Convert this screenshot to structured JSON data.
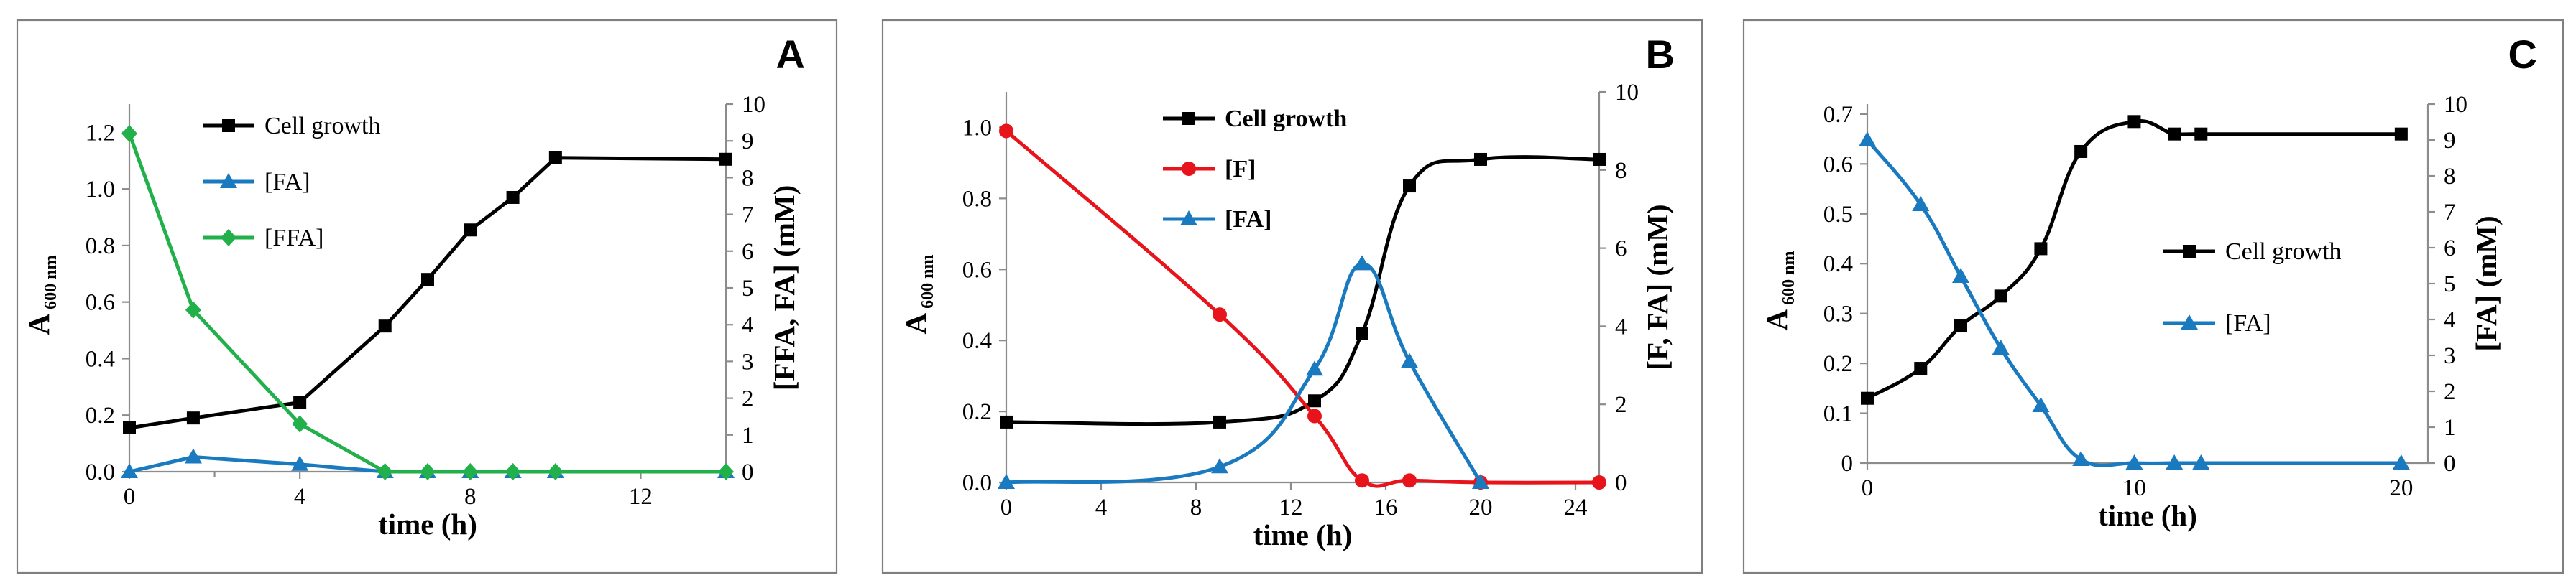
{
  "colors": {
    "black": "#000000",
    "blue": "#1a7abf",
    "green": "#22b04a",
    "red": "#e8141c"
  },
  "chart_data": [
    {
      "type": "line",
      "panel": "A",
      "xlabel": "time (h)",
      "ylabel_main": "A",
      "ylabel_sub": "600 nm",
      "y2label": "[FFA, FA] (mM)",
      "xlim": [
        0,
        14
      ],
      "ylim": [
        0,
        1.3
      ],
      "y2lim": [
        0,
        10
      ],
      "xticks": [
        0,
        4,
        8,
        12
      ],
      "xminor": [
        2,
        6,
        10,
        14
      ],
      "yticks": [
        0,
        0.2,
        0.4,
        0.6,
        0.8,
        1.0,
        1.2
      ],
      "ytick_labels": [
        "0.0",
        "0.2",
        "0.4",
        "0.6",
        "0.8",
        "1.0",
        "1.2"
      ],
      "y2ticks": [
        0,
        1,
        2,
        3,
        4,
        5,
        6,
        7,
        8,
        9,
        10
      ],
      "grid": false,
      "legend_bold": false,
      "series": [
        {
          "name": "Cell growth",
          "axis": "left",
          "color": "#000000",
          "marker": "square",
          "curve": "linear",
          "x": [
            0,
            1.5,
            4,
            6,
            7,
            8,
            9,
            10,
            14
          ],
          "y": [
            0.155,
            0.19,
            0.245,
            0.515,
            0.68,
            0.855,
            0.97,
            1.11,
            1.105
          ]
        },
        {
          "name": "[FA]",
          "axis": "right",
          "color": "#1a7abf",
          "marker": "triangle",
          "curve": "linear",
          "x": [
            0,
            1.5,
            4,
            6,
            7,
            8,
            9,
            10,
            14
          ],
          "y": [
            0,
            0.4,
            0.2,
            0,
            0,
            0,
            0,
            0,
            0
          ]
        },
        {
          "name": "[FFA]",
          "axis": "right",
          "color": "#22b04a",
          "marker": "diamond",
          "curve": "linear",
          "x": [
            0,
            1.5,
            4,
            6,
            7,
            8,
            9,
            10,
            14
          ],
          "y": [
            9.2,
            4.4,
            1.3,
            0,
            0,
            0,
            0,
            0,
            0
          ]
        }
      ]
    },
    {
      "type": "line",
      "panel": "B",
      "xlabel": "time (h)",
      "ylabel_main": "A",
      "ylabel_sub": "600 nm",
      "y2label": "[F, FA] (mM)",
      "xlim": [
        0,
        25
      ],
      "ylim": [
        0,
        1.1
      ],
      "y2lim": [
        0,
        10
      ],
      "xticks": [
        0,
        4,
        8,
        12,
        16,
        20,
        24
      ],
      "xminor": [],
      "yticks": [
        0,
        0.2,
        0.4,
        0.6,
        0.8,
        1.0
      ],
      "ytick_labels": [
        "0.0",
        "0.2",
        "0.4",
        "0.6",
        "0.8",
        "1.0"
      ],
      "y2ticks": [
        0,
        2,
        4,
        6,
        8,
        10
      ],
      "grid": false,
      "legend_bold": true,
      "series": [
        {
          "name": "Cell growth",
          "axis": "left",
          "color": "#000000",
          "marker": "square",
          "curve": "smooth",
          "x": [
            0,
            9,
            13,
            15,
            17,
            20,
            25
          ],
          "y": [
            0.17,
            0.17,
            0.23,
            0.42,
            0.835,
            0.91,
            0.91
          ]
        },
        {
          "name": "[F]",
          "axis": "right",
          "color": "#e8141c",
          "marker": "circle",
          "curve": "smooth",
          "x": [
            0,
            9,
            13,
            15,
            17,
            20,
            25
          ],
          "y": [
            9.0,
            4.3,
            1.7,
            0.05,
            0.05,
            0,
            0
          ]
        },
        {
          "name": "[FA]",
          "axis": "right",
          "color": "#1a7abf",
          "marker": "triangle",
          "curve": "smooth",
          "x": [
            0,
            9,
            13,
            15,
            17,
            20
          ],
          "y": [
            0,
            0.4,
            2.9,
            5.6,
            3.1,
            0
          ]
        }
      ]
    },
    {
      "type": "line",
      "panel": "C",
      "xlabel": "time (h)",
      "ylabel_main": "A",
      "ylabel_sub": "600 nm",
      "y2label": "[FA] (mM)",
      "xlim": [
        0,
        21
      ],
      "ylim": [
        0,
        0.72
      ],
      "y2lim": [
        0,
        10
      ],
      "xticks": [
        0,
        10,
        20
      ],
      "xminor": [],
      "yticks": [
        0,
        0.1,
        0.2,
        0.3,
        0.4,
        0.5,
        0.6,
        0.7
      ],
      "ytick_labels": [
        "0",
        "0.1",
        "0.2",
        "0.3",
        "0.4",
        "0.5",
        "0.6",
        "0.7"
      ],
      "y2ticks": [
        0,
        1,
        2,
        3,
        4,
        5,
        6,
        7,
        8,
        9,
        10
      ],
      "grid": false,
      "legend_bold": false,
      "series": [
        {
          "name": "Cell growth",
          "axis": "left",
          "color": "#000000",
          "marker": "square",
          "curve": "smooth",
          "x": [
            0,
            2,
            3.5,
            5,
            6.5,
            8,
            10,
            11.5,
            12.5,
            20
          ],
          "y": [
            0.13,
            0.19,
            0.275,
            0.335,
            0.43,
            0.625,
            0.685,
            0.66,
            0.66,
            0.66
          ]
        },
        {
          "name": "[FA]",
          "axis": "right",
          "color": "#1a7abf",
          "marker": "triangle",
          "curve": "smooth",
          "x": [
            0,
            2,
            3.5,
            5,
            6.5,
            8,
            10,
            11.5,
            12.5,
            20
          ],
          "y": [
            9.0,
            7.2,
            5.2,
            3.2,
            1.6,
            0.1,
            0,
            0,
            0,
            0
          ]
        }
      ]
    }
  ]
}
